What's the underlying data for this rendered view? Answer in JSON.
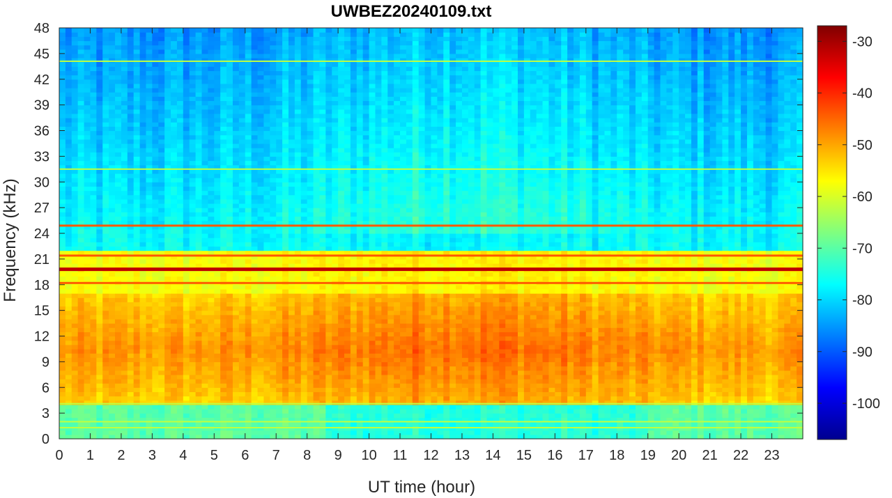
{
  "chart_data": {
    "type": "heatmap",
    "title": "UWBEZ20240109.txt",
    "xlabel": "UT time (hour)",
    "ylabel": "Frequency (kHz)",
    "xlim": [
      0,
      24
    ],
    "ylim": [
      0,
      48
    ],
    "x_ticks": [
      "0",
      "1",
      "2",
      "3",
      "4",
      "5",
      "6",
      "7",
      "8",
      "9",
      "10",
      "11",
      "12",
      "13",
      "14",
      "15",
      "16",
      "17",
      "18",
      "19",
      "20",
      "21",
      "22",
      "23"
    ],
    "y_ticks": [
      "0",
      "3",
      "6",
      "9",
      "12",
      "15",
      "18",
      "21",
      "24",
      "27",
      "30",
      "33",
      "36",
      "39",
      "42",
      "45",
      "48"
    ],
    "colorbar": {
      "colormap": "jet",
      "range": [
        -107,
        -27
      ],
      "ticks": [
        "-100",
        "-90",
        "-80",
        "-70",
        "-60",
        "-50",
        "-40",
        "-30"
      ],
      "tick_values": [
        -100,
        -90,
        -80,
        -70,
        -60,
        -50,
        -40,
        -30
      ]
    },
    "features": {
      "strong_transmitter_khz": [
        19.8
      ],
      "moderate_lines_khz": [
        18.2,
        21.4,
        24.9
      ],
      "weak_lines_khz": [
        4.1,
        2.0,
        1.3,
        44.1,
        31.5
      ],
      "broadband_band_khz": [
        4,
        17
      ],
      "peak_power_hours": [
        10,
        16
      ],
      "background_level_db": -75
    },
    "grid": false
  }
}
